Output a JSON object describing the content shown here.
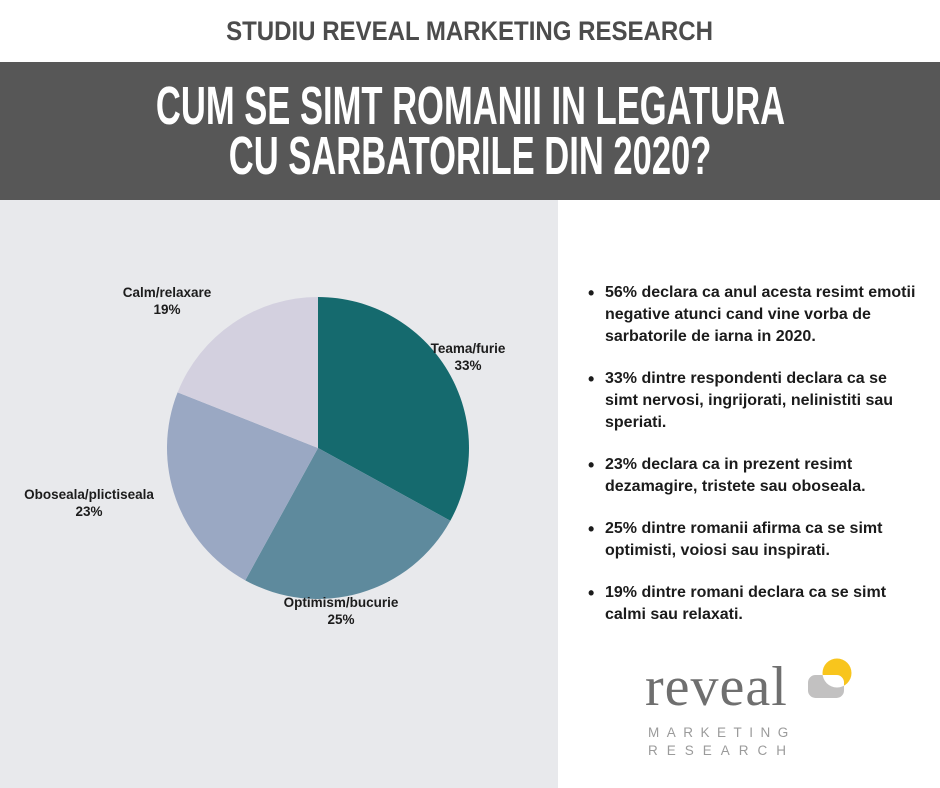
{
  "header": {
    "eyebrow": "STUDIU REVEAL MARKETING RESEARCH",
    "title_line1": "CUM SE SIMT ROMANII IN LEGATURA",
    "title_line2": "CU SARBATORILE DIN 2020?"
  },
  "theme": {
    "band_bg": "#575757",
    "chart_panel_bg": "#e8e9ec",
    "eyebrow_text": "#4c4c4c",
    "body_text": "#1b1b1b"
  },
  "chart_data": {
    "type": "pie",
    "start_angle_deg": 0,
    "direction": "clockwise",
    "legend_position": "outside-labels",
    "slices": [
      {
        "label": "Teama/furie",
        "value": 33,
        "display": "33%",
        "color": "#156a6e"
      },
      {
        "label": "Optimism/bucurie",
        "value": 25,
        "display": "25%",
        "color": "#5e8a9d"
      },
      {
        "label": "Oboseala/plictiseala",
        "value": 23,
        "display": "23%",
        "color": "#9aa8c3"
      },
      {
        "label": "Calm/relaxare",
        "value": 19,
        "display": "19%",
        "color": "#d3d0df"
      }
    ]
  },
  "insights": {
    "bullets": [
      "56% declara ca anul acesta resimt emotii negative atunci cand vine vorba de sarbatorile de iarna in 2020.",
      "33% dintre respondenti declara ca se simt nervosi, ingrijorati, nelinistiti sau speriati.",
      "23% declara ca in prezent resimt dezamagire, tristete sau oboseala.",
      "25% dintre romanii afirma ca se simt optimisti, voiosi sau inspirati.",
      "19% dintre romani declara ca se simt calmi sau relaxati."
    ]
  },
  "logo": {
    "word": "reveal",
    "sub_line1": "MARKETING",
    "sub_line2": "RESEARCH",
    "colors": {
      "circle_yellow": "#f8c51d",
      "square_gray": "#c2c1c1",
      "word_gray": "#6f6f6f",
      "sub_gray": "#9b9b9b"
    }
  }
}
